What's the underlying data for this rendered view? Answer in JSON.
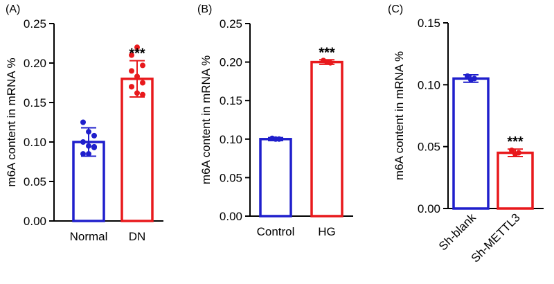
{
  "chart_data": [
    {
      "panel": "(A)",
      "type": "bar",
      "ylabel": "m6A content in mRNA %",
      "ylim": [
        0,
        0.25
      ],
      "yticks": [
        "0.00",
        "0.05",
        "0.10",
        "0.15",
        "0.20",
        "0.25"
      ],
      "categories": [
        "Normal",
        "DN"
      ],
      "colors": [
        "#1f1fcc",
        "#e8191c"
      ],
      "values": [
        0.1,
        0.18
      ],
      "sd": [
        0.018,
        0.023
      ],
      "points": [
        [
          0.125,
          0.113,
          0.108,
          0.1,
          0.095,
          0.093,
          0.085,
          0.085,
          0.094
        ],
        [
          0.21,
          0.22,
          0.197,
          0.19,
          0.183,
          0.175,
          0.17,
          0.162,
          0.16,
          0.17
        ]
      ],
      "significance": [
        "",
        "***"
      ]
    },
    {
      "panel": "(B)",
      "type": "bar",
      "ylabel": "m6A content in mRNA %",
      "ylim": [
        0,
        0.25
      ],
      "yticks": [
        "0.00",
        "0.05",
        "0.10",
        "0.15",
        "0.20",
        "0.25"
      ],
      "categories": [
        "Control",
        "HG"
      ],
      "colors": [
        "#1f1fcc",
        "#e8191c"
      ],
      "values": [
        0.1,
        0.2
      ],
      "sd": [
        0.002,
        0.003
      ],
      "points": [
        [
          0.101,
          0.1,
          0.1
        ],
        [
          0.202,
          0.2,
          0.199
        ]
      ],
      "significance": [
        "",
        "***"
      ]
    },
    {
      "panel": "(C)",
      "type": "bar",
      "ylabel": "m6A content in mRNA %",
      "ylim": [
        0,
        0.15
      ],
      "yticks": [
        "0.00",
        "0.05",
        "0.10",
        "0.15"
      ],
      "categories": [
        "Sh-blank",
        "Sh-METTL3"
      ],
      "colors": [
        "#1f1fcc",
        "#e8191c"
      ],
      "values": [
        0.105,
        0.045
      ],
      "sd": [
        0.003,
        0.003
      ],
      "points": [
        [
          0.107,
          0.104,
          0.105
        ],
        [
          0.047,
          0.044,
          0.045
        ]
      ],
      "significance": [
        "",
        "***"
      ]
    }
  ]
}
